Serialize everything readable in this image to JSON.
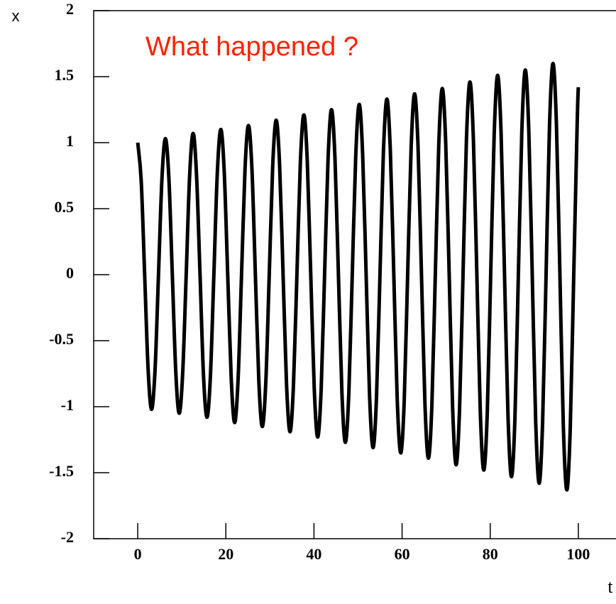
{
  "chart_data": {
    "type": "line",
    "annotation": "What happened ?",
    "xlabel": "t",
    "ylabel": "x",
    "x": [
      0,
      0.79,
      1.57,
      2.36,
      3.14,
      3.93,
      4.71,
      5.5,
      6.28,
      7.07,
      7.85,
      8.64,
      9.42,
      10.21,
      11,
      11.78,
      12.57,
      13.35,
      14.14,
      14.92,
      15.71,
      16.49,
      17.28,
      18.06,
      18.85,
      19.63,
      20.42,
      21.21,
      21.99,
      22.78,
      23.56,
      24.35,
      25.13,
      25.92,
      26.7,
      27.49,
      28.27,
      29.06,
      29.85,
      30.63,
      31.42,
      32.2,
      32.99,
      33.77,
      34.56,
      35.34,
      36.13,
      36.91,
      37.7,
      38.48,
      39.27,
      40.06,
      40.84,
      41.63,
      42.41,
      43.2,
      43.98,
      44.77,
      45.55,
      46.34,
      47.12,
      47.91,
      48.69,
      49.48,
      50.27,
      51.05,
      51.84,
      52.62,
      53.41,
      54.19,
      54.98,
      55.76,
      56.55,
      57.33,
      58.12,
      58.9,
      59.69,
      60.48,
      61.26,
      62.05,
      62.83,
      63.62,
      64.4,
      65.19,
      65.97,
      66.76,
      67.54,
      68.33,
      69.12,
      69.9,
      70.69,
      71.47,
      72.26,
      73.04,
      73.83,
      74.61,
      75.4,
      76.18,
      76.97,
      77.75,
      78.54,
      79.33,
      80.11,
      80.9,
      81.68,
      82.47,
      83.25,
      84.04,
      84.82,
      85.61,
      86.39,
      87.18,
      87.96,
      88.75,
      89.54,
      90.32,
      91.11,
      91.89,
      92.68,
      93.46,
      94.25,
      95.03,
      95.82,
      96.6,
      97.39,
      98.17,
      98.96,
      99.75,
      100
    ],
    "series": [
      {
        "color": "#000000",
        "values": [
          1.0,
          0.71,
          0,
          -0.72,
          -1.02,
          -0.72,
          0,
          0.73,
          1.03,
          0.73,
          0,
          -0.74,
          -1.05,
          -0.74,
          0,
          0.75,
          1.07,
          0.75,
          0,
          -0.76,
          -1.08,
          -0.77,
          0,
          0.77,
          1.1,
          0.78,
          0,
          -0.78,
          -1.12,
          -0.79,
          0,
          0.8,
          1.13,
          0.8,
          0,
          -0.81,
          -1.15,
          -0.82,
          0,
          0.82,
          1.17,
          0.83,
          0,
          -0.83,
          -1.19,
          -0.84,
          0,
          0.85,
          1.21,
          0.86,
          0,
          -0.86,
          -1.23,
          -0.87,
          0,
          0.88,
          1.25,
          0.88,
          0,
          -0.89,
          -1.27,
          -0.9,
          0,
          0.9,
          1.29,
          0.91,
          0,
          -0.92,
          -1.31,
          -0.93,
          0,
          0.93,
          1.33,
          0.94,
          0,
          -0.95,
          -1.35,
          -0.96,
          0,
          0.96,
          1.37,
          0.97,
          0,
          -0.98,
          -1.39,
          -0.99,
          0,
          0.99,
          1.41,
          1.0,
          0,
          -1.01,
          -1.44,
          -1.02,
          0,
          1.03,
          1.46,
          1.03,
          0,
          -1.04,
          -1.48,
          -1.05,
          0,
          1.06,
          1.51,
          1.07,
          0,
          -1.07,
          -1.53,
          -1.09,
          0,
          1.09,
          1.55,
          1.1,
          0,
          -1.11,
          -1.58,
          -1.12,
          0,
          1.13,
          1.6,
          1.14,
          0,
          -1.15,
          -1.63,
          -1.16,
          0,
          1.16,
          1.42
        ]
      }
    ],
    "xlim": [
      -10,
      110
    ],
    "xticks": [
      0,
      20,
      40,
      60,
      80,
      100
    ],
    "ylim": [
      -2,
      2
    ],
    "yticks": [
      -2,
      -1.5,
      -1,
      -0.5,
      0,
      0.5,
      1,
      1.5,
      2
    ],
    "annotation_color": "#ff2200"
  }
}
